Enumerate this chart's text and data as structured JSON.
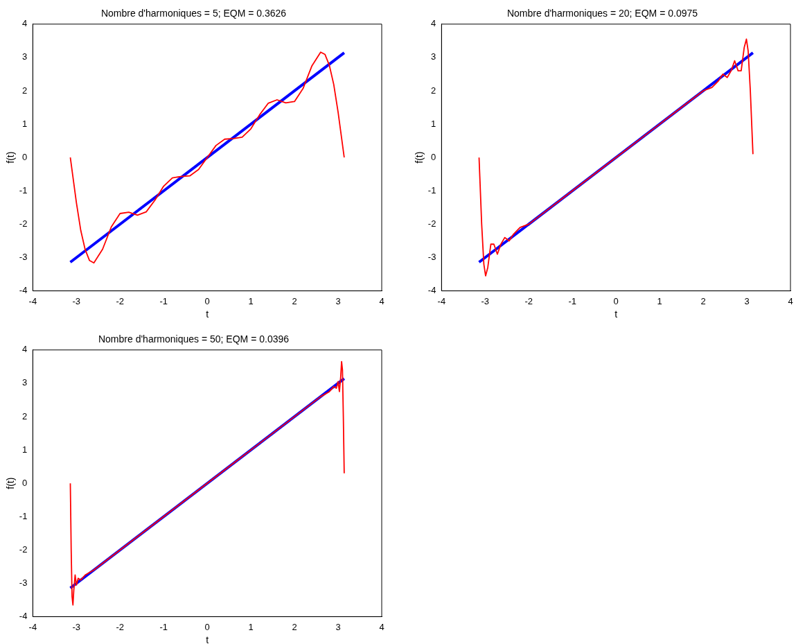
{
  "chart_data": [
    {
      "type": "line",
      "title": "Nombre d'harmoniques = 5; EQM = 0.3626",
      "xlabel": "t",
      "ylabel": "f(t)",
      "xlim": [
        -4,
        4
      ],
      "ylim": [
        -4,
        4
      ],
      "xticks": [
        -4,
        -3,
        -2,
        -1,
        0,
        1,
        2,
        3,
        4
      ],
      "yticks": [
        -4,
        -3,
        -2,
        -1,
        0,
        1,
        2,
        3,
        4
      ],
      "grid": false,
      "legend": false,
      "marker": "none",
      "line_style": "solid",
      "series": [
        {
          "color": "#ff0000",
          "x": [
            -3.14,
            -3.0,
            -2.9,
            -2.8,
            -2.7,
            -2.6,
            -2.4,
            -2.2,
            -2.0,
            -1.8,
            -1.6,
            -1.4,
            -1.2,
            -1.0,
            -0.8,
            -0.6,
            -0.4,
            -0.2,
            0,
            0.2,
            0.4,
            0.6,
            0.8,
            1.0,
            1.2,
            1.4,
            1.6,
            1.8,
            2.0,
            2.2,
            2.4,
            2.6,
            2.7,
            2.8,
            2.9,
            3.0,
            3.14
          ],
          "values": [
            0,
            -1.36,
            -2.19,
            -2.76,
            -3.09,
            -3.16,
            -2.75,
            -2.08,
            -1.68,
            -1.64,
            -1.73,
            -1.63,
            -1.28,
            -0.86,
            -0.61,
            -0.57,
            -0.55,
            -0.36,
            0,
            0.36,
            0.55,
            0.57,
            0.61,
            0.86,
            1.28,
            1.63,
            1.73,
            1.64,
            1.68,
            2.08,
            2.75,
            3.16,
            3.09,
            2.76,
            2.19,
            1.36,
            0
          ]
        },
        {
          "color": "#0000ff",
          "x": [
            -3.14,
            3.14
          ],
          "values": [
            -3.14,
            3.14
          ]
        }
      ]
    },
    {
      "type": "line",
      "title": "Nombre d'harmoniques = 20; EQM = 0.0975",
      "xlabel": "t",
      "ylabel": "f(t)",
      "xlim": [
        -4,
        4
      ],
      "ylim": [
        -4,
        4
      ],
      "xticks": [
        -4,
        -3,
        -2,
        -1,
        0,
        1,
        2,
        3,
        4
      ],
      "yticks": [
        -4,
        -3,
        -2,
        -1,
        0,
        1,
        2,
        3,
        4
      ],
      "grid": false,
      "legend": false,
      "marker": "none",
      "line_style": "solid",
      "series": [
        {
          "color": "#ff0000",
          "x": [
            -3.14,
            -3.08,
            -3.03,
            -2.99,
            -2.94,
            -2.87,
            -2.8,
            -2.72,
            -2.64,
            -2.55,
            -2.45,
            -2.35,
            -2.2,
            -2.0,
            -1.75,
            -1.5,
            -1.25,
            -1.0,
            -0.75,
            -0.5,
            -0.25,
            0,
            0.25,
            0.5,
            0.75,
            1.0,
            1.25,
            1.5,
            1.75,
            2.0,
            2.2,
            2.35,
            2.45,
            2.55,
            2.64,
            2.72,
            2.8,
            2.87,
            2.94,
            2.99,
            3.03,
            3.08,
            3.14
          ],
          "values": [
            0,
            -2.0,
            -3.2,
            -3.55,
            -3.3,
            -2.6,
            -2.6,
            -2.9,
            -2.6,
            -2.4,
            -2.5,
            -2.3,
            -2.1,
            -2.0,
            -1.75,
            -1.5,
            -1.25,
            -1.0,
            -0.75,
            -0.5,
            -0.25,
            0,
            0.25,
            0.5,
            0.75,
            1.0,
            1.25,
            1.5,
            1.75,
            2.0,
            2.1,
            2.3,
            2.5,
            2.4,
            2.6,
            2.9,
            2.6,
            2.6,
            3.3,
            3.55,
            3.2,
            2.0,
            0.1
          ]
        },
        {
          "color": "#0000ff",
          "x": [
            -3.14,
            3.14
          ],
          "values": [
            -3.14,
            3.14
          ]
        }
      ]
    },
    {
      "type": "line",
      "title": "Nombre d'harmoniques = 50; EQM = 0.0396",
      "xlabel": "t",
      "ylabel": "f(t)",
      "xlim": [
        -4,
        4
      ],
      "ylim": [
        -4,
        4
      ],
      "xticks": [
        -4,
        -3,
        -2,
        -1,
        0,
        1,
        2,
        3,
        4
      ],
      "yticks": [
        -4,
        -3,
        -2,
        -1,
        0,
        1,
        2,
        3,
        4
      ],
      "grid": false,
      "legend": false,
      "marker": "none",
      "line_style": "solid",
      "series": [
        {
          "color": "#ff0000",
          "x": [
            -3.14,
            -3.12,
            -3.1,
            -3.08,
            -3.06,
            -3.03,
            -3.0,
            -2.96,
            -2.9,
            -2.8,
            -2.6,
            -2.2,
            -1.8,
            -1.4,
            -1.0,
            -0.6,
            -0.2,
            0.2,
            0.6,
            1.0,
            1.4,
            1.8,
            2.2,
            2.6,
            2.8,
            2.9,
            2.96,
            3.0,
            3.03,
            3.06,
            3.08,
            3.1,
            3.12,
            3.14
          ],
          "values": [
            0,
            -2.0,
            -3.4,
            -3.65,
            -3.2,
            -2.75,
            -3.05,
            -2.85,
            -2.9,
            -2.75,
            -2.6,
            -2.2,
            -1.8,
            -1.4,
            -1.0,
            -0.6,
            -0.2,
            0.2,
            0.6,
            1.0,
            1.4,
            1.8,
            2.2,
            2.6,
            2.75,
            2.9,
            2.85,
            3.05,
            2.75,
            3.2,
            3.65,
            3.4,
            2.0,
            0.3
          ]
        },
        {
          "color": "#0000ff",
          "x": [
            -3.14,
            3.14
          ],
          "values": [
            -3.14,
            3.14
          ]
        }
      ]
    }
  ]
}
